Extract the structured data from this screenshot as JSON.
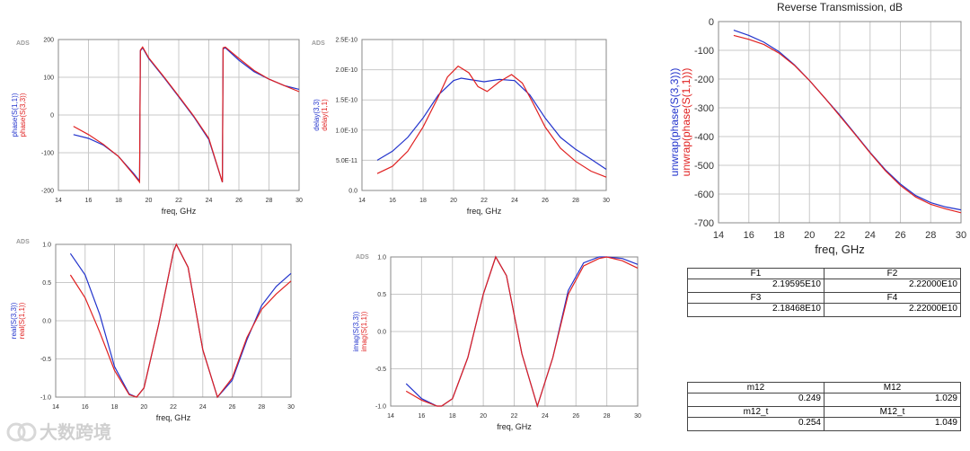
{
  "colors": {
    "blue": "#2233cc",
    "red": "#e02020"
  },
  "ads_label": "ADS",
  "chart_data": [
    {
      "id": "phase",
      "type": "line",
      "xlabel": "freq, GHz",
      "ylabels": [
        "phase(S(1,1))",
        "phase(S(3,3))"
      ],
      "xlim": [
        14,
        30
      ],
      "ylim": [
        -200,
        200
      ],
      "xticks": [
        14,
        16,
        18,
        20,
        22,
        24,
        26,
        28,
        30
      ],
      "yticks": [
        -200,
        -100,
        0,
        100,
        200
      ],
      "yticklabels": [
        "-200",
        "-100",
        "0",
        "100",
        "200"
      ],
      "series": [
        {
          "color": "blue",
          "x": [
            15,
            16,
            17,
            18,
            19,
            19.4,
            19.45,
            19.6,
            20,
            21,
            22,
            23,
            24,
            24.9,
            24.95,
            25.1,
            26,
            27,
            28,
            29,
            30
          ],
          "y": [
            -52,
            -62,
            -80,
            -110,
            -155,
            -175,
            170,
            178,
            150,
            100,
            48,
            -5,
            -65,
            -178,
            175,
            178,
            145,
            115,
            95,
            78,
            68
          ]
        },
        {
          "color": "red",
          "x": [
            15,
            16,
            17,
            18,
            19,
            19.4,
            19.45,
            19.6,
            20,
            21,
            22,
            23,
            24,
            24.9,
            24.95,
            25.1,
            26,
            27,
            28,
            29,
            30
          ],
          "y": [
            -30,
            -52,
            -78,
            -110,
            -158,
            -178,
            172,
            180,
            152,
            102,
            50,
            -3,
            -62,
            -178,
            178,
            180,
            150,
            118,
            95,
            78,
            62
          ]
        }
      ]
    },
    {
      "id": "delay",
      "type": "line",
      "xlabel": "freq, GHz",
      "ylabels": [
        "delay(3,3)",
        "delay(1,1)"
      ],
      "xlim": [
        14,
        30
      ],
      "ylim": [
        0,
        2.5e-10
      ],
      "xticks": [
        14,
        16,
        18,
        20,
        22,
        24,
        26,
        28,
        30
      ],
      "yticks": [
        0,
        5e-11,
        1e-10,
        1.5e-10,
        2e-10,
        2.5e-10
      ],
      "yticklabels": [
        "0.0",
        "5.0E-11",
        "1.0E-10",
        "1.5E-10",
        "2.0E-10",
        "2.5E-10"
      ],
      "series": [
        {
          "color": "blue",
          "x": [
            15,
            16,
            17,
            18,
            19,
            20,
            20.5,
            21,
            22,
            23,
            24,
            25,
            26,
            27,
            28,
            29,
            30
          ],
          "y": [
            5e-11,
            6.5e-11,
            8.8e-11,
            1.2e-10,
            1.58e-10,
            1.82e-10,
            1.86e-10,
            1.84e-10,
            1.8e-10,
            1.84e-10,
            1.82e-10,
            1.58e-10,
            1.2e-10,
            8.8e-11,
            6.8e-11,
            5.2e-11,
            3.5e-11
          ]
        },
        {
          "color": "red",
          "x": [
            15,
            16,
            17,
            18,
            19,
            19.6,
            20.3,
            21,
            21.6,
            22.2,
            23,
            23.8,
            24.5,
            25.2,
            26,
            27,
            28,
            29,
            30
          ],
          "y": [
            2.8e-11,
            4e-11,
            6.5e-11,
            1.05e-10,
            1.55e-10,
            1.88e-10,
            2.06e-10,
            1.95e-10,
            1.72e-10,
            1.64e-10,
            1.8e-10,
            1.92e-10,
            1.78e-10,
            1.45e-10,
            1.05e-10,
            7e-11,
            4.8e-11,
            3.2e-11,
            2.2e-11
          ]
        }
      ]
    },
    {
      "id": "unwrap",
      "type": "line",
      "title": "Reverse Transmission, dB",
      "xlabel": "freq, GHz",
      "ylabels": [
        "unwrap(phase(S(3,3)))",
        "unwrap(phase(S(1,1)))"
      ],
      "xlim": [
        14,
        30
      ],
      "ylim": [
        -700,
        0
      ],
      "xticks": [
        14,
        16,
        18,
        20,
        22,
        24,
        26,
        28,
        30
      ],
      "yticks": [
        -700,
        -600,
        -500,
        -400,
        -300,
        -200,
        -100,
        0
      ],
      "yticklabels": [
        "-700",
        "-600",
        "-500",
        "-400",
        "-300",
        "-200",
        "-100",
        "0"
      ],
      "series": [
        {
          "color": "blue",
          "x": [
            15,
            16,
            17,
            18,
            19,
            20,
            21,
            22,
            23,
            24,
            25,
            26,
            27,
            28,
            29,
            30
          ],
          "y": [
            -30,
            -48,
            -72,
            -105,
            -150,
            -205,
            -265,
            -325,
            -390,
            -455,
            -515,
            -565,
            -605,
            -630,
            -645,
            -655
          ]
        },
        {
          "color": "red",
          "x": [
            15,
            16,
            17,
            18,
            19,
            20,
            21,
            22,
            23,
            24,
            25,
            26,
            27,
            28,
            29,
            30
          ],
          "y": [
            -48,
            -62,
            -80,
            -110,
            -152,
            -205,
            -265,
            -328,
            -392,
            -457,
            -518,
            -570,
            -610,
            -636,
            -652,
            -665
          ]
        }
      ]
    },
    {
      "id": "real",
      "type": "line",
      "xlabel": "freq, GHz",
      "ylabels": [
        "real(S(3,3))",
        "real(S(1,1))"
      ],
      "xlim": [
        14,
        30
      ],
      "ylim": [
        -1.0,
        1.0
      ],
      "xticks": [
        14,
        16,
        18,
        20,
        22,
        24,
        26,
        28,
        30
      ],
      "yticks": [
        -1.0,
        -0.5,
        0,
        0.5,
        1.0
      ],
      "yticklabels": [
        "-1.0",
        "-0.5",
        "0.0",
        "0.5",
        "1.0"
      ],
      "series": [
        {
          "color": "blue",
          "x": [
            15,
            16,
            17,
            18,
            19,
            19.5,
            20,
            21,
            22,
            22.2,
            23,
            24,
            25,
            26,
            27,
            28,
            29,
            30
          ],
          "y": [
            0.88,
            0.6,
            0.08,
            -0.6,
            -0.96,
            -1.0,
            -0.88,
            -0.05,
            0.9,
            1.0,
            0.7,
            -0.38,
            -1.0,
            -0.78,
            -0.25,
            0.2,
            0.45,
            0.62
          ]
        },
        {
          "color": "red",
          "x": [
            15,
            16,
            17,
            18,
            19,
            19.5,
            20,
            21,
            22,
            22.2,
            23,
            24,
            25,
            26,
            27,
            28,
            29,
            30
          ],
          "y": [
            0.6,
            0.3,
            -0.15,
            -0.65,
            -0.97,
            -1.0,
            -0.88,
            -0.05,
            0.9,
            1.0,
            0.7,
            -0.38,
            -1.0,
            -0.75,
            -0.22,
            0.15,
            0.35,
            0.52
          ]
        }
      ]
    },
    {
      "id": "imag",
      "type": "line",
      "xlabel": "freq, GHz",
      "ylabels": [
        "imag(S(3,3))",
        "imag(S(1,1))"
      ],
      "xlim": [
        14,
        30
      ],
      "ylim": [
        -1.0,
        1.0
      ],
      "xticks": [
        14,
        16,
        18,
        20,
        22,
        24,
        26,
        28,
        30
      ],
      "yticks": [
        -1.0,
        -0.5,
        0,
        0.5,
        1.0
      ],
      "yticklabels": [
        "-1.0",
        "-0.5",
        "0.0",
        "0.5",
        "1.0"
      ],
      "series": [
        {
          "color": "blue",
          "x": [
            15,
            16,
            17,
            17.3,
            18,
            19,
            20,
            20.8,
            21.5,
            22.5,
            23.5,
            24.5,
            25.5,
            26.5,
            27.5,
            28,
            29,
            30
          ],
          "y": [
            -0.7,
            -0.9,
            -1.0,
            -1.0,
            -0.9,
            -0.35,
            0.5,
            1.0,
            0.75,
            -0.3,
            -1.0,
            -0.35,
            0.55,
            0.92,
            1.0,
            1.0,
            0.98,
            0.9
          ]
        },
        {
          "color": "red",
          "x": [
            15,
            16,
            17,
            17.3,
            18,
            19,
            20,
            20.8,
            21.5,
            22.5,
            23.5,
            24.5,
            25.5,
            26.5,
            27.5,
            28,
            29,
            30
          ],
          "y": [
            -0.8,
            -0.92,
            -1.0,
            -1.0,
            -0.9,
            -0.35,
            0.5,
            1.0,
            0.75,
            -0.3,
            -1.0,
            -0.35,
            0.5,
            0.88,
            0.98,
            1.0,
            0.95,
            0.85
          ]
        }
      ]
    }
  ],
  "marker_table_1": {
    "rows": [
      {
        "h1": "F1",
        "h2": "F2",
        "v1": "2.19595E10",
        "v2": "2.22000E10"
      },
      {
        "h1": "F3",
        "h2": "F4",
        "v1": "2.18468E10",
        "v2": "2.22000E10"
      }
    ]
  },
  "marker_table_2": {
    "rows": [
      {
        "h1": "m12",
        "h2": "M12",
        "v1": "0.249",
        "v2": "1.029"
      },
      {
        "h1": "m12_t",
        "h2": "M12_t",
        "v1": "0.254",
        "v2": "1.049"
      }
    ]
  },
  "watermark": {
    "text": "大数跨境"
  }
}
